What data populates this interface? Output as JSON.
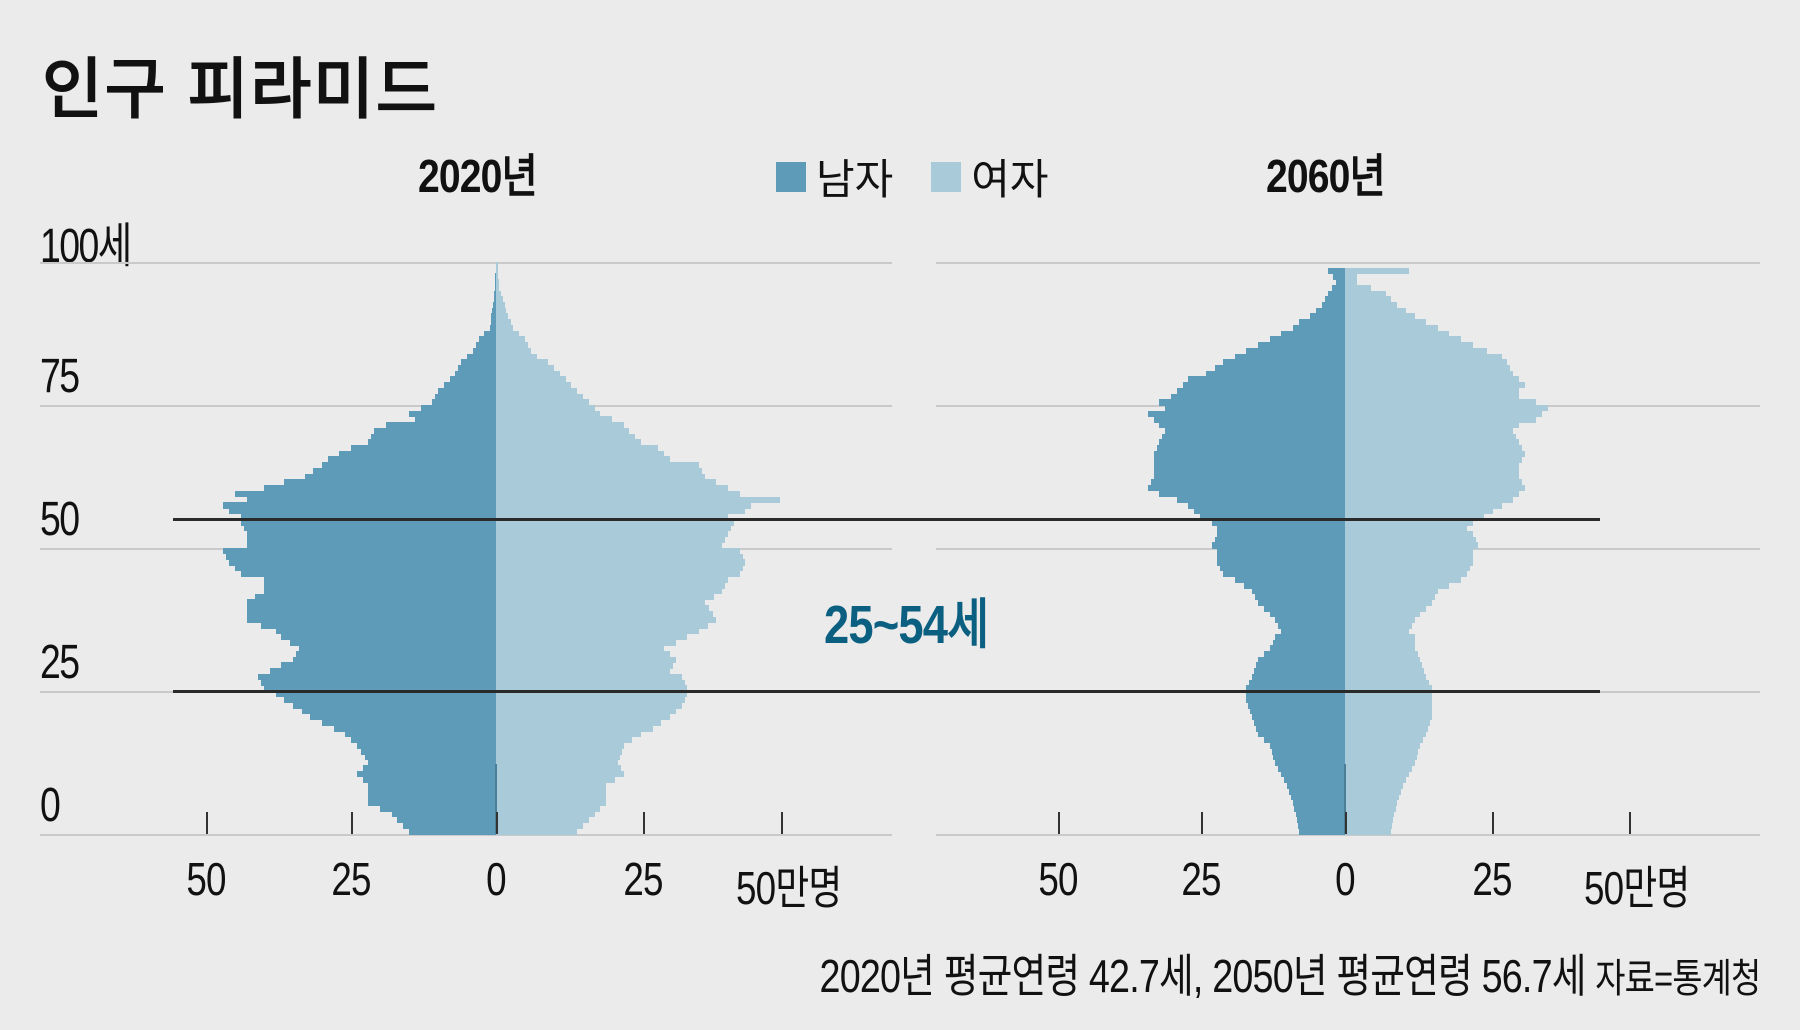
{
  "title": "인구 피라미드",
  "legend": {
    "male_label": "남자",
    "female_label": "여자",
    "male_color": "#5e9bb9",
    "female_color": "#a9cad9"
  },
  "panels": [
    {
      "title": "2020년"
    },
    {
      "title": "2060년"
    }
  ],
  "y_axis": {
    "ticks": [
      {
        "label": "100세",
        "value": 100
      },
      {
        "label": "75",
        "value": 75
      },
      {
        "label": "50",
        "value": 50
      },
      {
        "label": "25",
        "value": 25
      },
      {
        "label": "0",
        "value": 0
      }
    ]
  },
  "x_axis": {
    "ticks": [
      "50",
      "25",
      "0",
      "25",
      "50만명"
    ]
  },
  "highlight": {
    "label": "25~54세",
    "color": "#0b5f80",
    "from_age": 25,
    "to_age": 55
  },
  "footer": {
    "text": "2020년 평균연령 42.7세, 2050년 평균연령 56.7세",
    "source": "자료=통계청"
  },
  "chart_data": [
    {
      "type": "bar",
      "title": "2020년",
      "subtype": "population-pyramid",
      "xlabel": "만명",
      "ylabel": "세",
      "xlim": [
        -50,
        50
      ],
      "ylim": [
        0,
        100
      ],
      "series": [
        {
          "name": "남자",
          "color": "#5e9bb9",
          "points": [
            [
              0,
              15
            ],
            [
              3,
              18
            ],
            [
              5,
              22
            ],
            [
              8,
              22
            ],
            [
              10,
              24
            ],
            [
              12,
              22
            ],
            [
              15,
              24
            ],
            [
              17,
              26
            ],
            [
              18,
              28
            ],
            [
              20,
              32
            ],
            [
              22,
              35
            ],
            [
              24,
              38
            ],
            [
              25,
              40
            ],
            [
              27,
              41
            ],
            [
              28,
              39
            ],
            [
              30,
              35
            ],
            [
              32,
              34
            ],
            [
              34,
              37
            ],
            [
              35,
              38
            ],
            [
              37,
              43
            ],
            [
              40,
              43
            ],
            [
              42,
              40
            ],
            [
              44,
              40
            ],
            [
              45,
              44
            ],
            [
              47,
              46
            ],
            [
              49,
              47
            ],
            [
              50,
              43
            ],
            [
              52,
              43
            ],
            [
              54,
              44
            ],
            [
              55,
              44
            ],
            [
              56,
              46
            ],
            [
              57,
              47
            ],
            [
              58,
              43
            ],
            [
              59,
              45
            ],
            [
              60,
              40
            ],
            [
              62,
              33
            ],
            [
              64,
              30
            ],
            [
              65,
              29
            ],
            [
              67,
              25
            ],
            [
              68,
              22
            ],
            [
              70,
              21
            ],
            [
              71,
              19
            ],
            [
              72,
              14
            ],
            [
              73,
              15
            ],
            [
              74,
              13
            ],
            [
              75,
              11
            ],
            [
              77,
              10
            ],
            [
              79,
              8
            ],
            [
              80,
              7
            ],
            [
              82,
              6
            ],
            [
              83,
              5
            ],
            [
              84,
              4
            ],
            [
              86,
              3
            ],
            [
              87,
              2
            ],
            [
              88,
              1
            ],
            [
              90,
              0.8
            ],
            [
              92,
              0.5
            ],
            [
              95,
              0.2
            ],
            [
              99,
              0
            ]
          ]
        },
        {
          "name": "여자",
          "color": "#a9cad9",
          "points": [
            [
              0,
              14
            ],
            [
              3,
              17
            ],
            [
              5,
              19
            ],
            [
              8,
              19
            ],
            [
              10,
              22
            ],
            [
              12,
              21
            ],
            [
              15,
              22
            ],
            [
              17,
              25
            ],
            [
              18,
              27
            ],
            [
              20,
              30
            ],
            [
              22,
              32
            ],
            [
              24,
              33
            ],
            [
              25,
              33
            ],
            [
              27,
              32
            ],
            [
              28,
              30
            ],
            [
              30,
              31
            ],
            [
              32,
              29
            ],
            [
              34,
              33
            ],
            [
              35,
              35
            ],
            [
              37,
              38
            ],
            [
              40,
              36
            ],
            [
              42,
              39
            ],
            [
              44,
              40
            ],
            [
              45,
              42
            ],
            [
              47,
              43
            ],
            [
              49,
              42
            ],
            [
              50,
              39
            ],
            [
              52,
              40
            ],
            [
              54,
              41
            ],
            [
              55,
              40
            ],
            [
              56,
              43
            ],
            [
              57,
              44
            ],
            [
              58,
              49
            ],
            [
              59,
              42
            ],
            [
              60,
              40
            ],
            [
              62,
              36
            ],
            [
              64,
              35
            ],
            [
              65,
              30
            ],
            [
              67,
              28
            ],
            [
              68,
              25
            ],
            [
              70,
              23
            ],
            [
              71,
              22
            ],
            [
              72,
              20
            ],
            [
              73,
              18
            ],
            [
              74,
              17
            ],
            [
              75,
              16
            ],
            [
              77,
              14
            ],
            [
              79,
              12
            ],
            [
              80,
              11
            ],
            [
              82,
              9
            ],
            [
              83,
              7
            ],
            [
              84,
              6
            ],
            [
              86,
              5
            ],
            [
              87,
              4
            ],
            [
              88,
              3
            ],
            [
              90,
              2
            ],
            [
              92,
              1.5
            ],
            [
              95,
              0.5
            ],
            [
              99,
              0.3
            ]
          ]
        }
      ]
    },
    {
      "type": "bar",
      "title": "2060년",
      "subtype": "population-pyramid",
      "xlabel": "만명",
      "ylabel": "세",
      "xlim": [
        -50,
        50
      ],
      "ylim": [
        0,
        100
      ],
      "series": [
        {
          "name": "남자",
          "color": "#5e9bb9",
          "points": [
            [
              0,
              8
            ],
            [
              3,
              8.5
            ],
            [
              5,
              9
            ],
            [
              8,
              10
            ],
            [
              10,
              11
            ],
            [
              12,
              12
            ],
            [
              15,
              13
            ],
            [
              17,
              15
            ],
            [
              20,
              16
            ],
            [
              23,
              17
            ],
            [
              25,
              17
            ],
            [
              27,
              16
            ],
            [
              30,
              15
            ],
            [
              32,
              13
            ],
            [
              34,
              12
            ],
            [
              35,
              11
            ],
            [
              37,
              12
            ],
            [
              39,
              14
            ],
            [
              40,
              15
            ],
            [
              42,
              16
            ],
            [
              44,
              19
            ],
            [
              45,
              21
            ],
            [
              47,
              22
            ],
            [
              49,
              22
            ],
            [
              50,
              23
            ],
            [
              52,
              22
            ],
            [
              53,
              22
            ],
            [
              54,
              23
            ],
            [
              55,
              25
            ],
            [
              57,
              27
            ],
            [
              58,
              29
            ],
            [
              59,
              32
            ],
            [
              60,
              34
            ],
            [
              62,
              33
            ],
            [
              64,
              33
            ],
            [
              66,
              33
            ],
            [
              68,
              32
            ],
            [
              70,
              31
            ],
            [
              71,
              32
            ],
            [
              72,
              33
            ],
            [
              73,
              34
            ],
            [
              74,
              31
            ],
            [
              75,
              32
            ],
            [
              76,
              30
            ],
            [
              77,
              29
            ],
            [
              78,
              28
            ],
            [
              79,
              27
            ],
            [
              80,
              24
            ],
            [
              82,
              21
            ],
            [
              83,
              19
            ],
            [
              85,
              15
            ],
            [
              86,
              13
            ],
            [
              88,
              9
            ],
            [
              89,
              8
            ],
            [
              90,
              6
            ],
            [
              92,
              4
            ],
            [
              94,
              3
            ],
            [
              96,
              1.5
            ],
            [
              97,
              2
            ],
            [
              98,
              3
            ]
          ]
        },
        {
          "name": "여자",
          "color": "#a9cad9",
          "points": [
            [
              0,
              8
            ],
            [
              3,
              8.5
            ],
            [
              5,
              9
            ],
            [
              8,
              10
            ],
            [
              10,
              11
            ],
            [
              12,
              12
            ],
            [
              15,
              13
            ],
            [
              17,
              14
            ],
            [
              20,
              15
            ],
            [
              23,
              15
            ],
            [
              25,
              15
            ],
            [
              27,
              14
            ],
            [
              30,
              13
            ],
            [
              32,
              12
            ],
            [
              34,
              12
            ],
            [
              35,
              11
            ],
            [
              37,
              12
            ],
            [
              39,
              14
            ],
            [
              40,
              15
            ],
            [
              42,
              16
            ],
            [
              44,
              20
            ],
            [
              45,
              21
            ],
            [
              47,
              22
            ],
            [
              49,
              22
            ],
            [
              50,
              23
            ],
            [
              52,
              22
            ],
            [
              53,
              21
            ],
            [
              54,
              22
            ],
            [
              55,
              24
            ],
            [
              57,
              27
            ],
            [
              58,
              29
            ],
            [
              59,
              30
            ],
            [
              60,
              31
            ],
            [
              62,
              30
            ],
            [
              64,
              30
            ],
            [
              66,
              31
            ],
            [
              68,
              30
            ],
            [
              70,
              29
            ],
            [
              71,
              30
            ],
            [
              72,
              33
            ],
            [
              73,
              34
            ],
            [
              74,
              35
            ],
            [
              75,
              33
            ],
            [
              76,
              30
            ],
            [
              77,
              30
            ],
            [
              78,
              31
            ],
            [
              79,
              30
            ],
            [
              80,
              29
            ],
            [
              82,
              28
            ],
            [
              83,
              27
            ],
            [
              85,
              22
            ],
            [
              86,
              20
            ],
            [
              88,
              16
            ],
            [
              89,
              14
            ],
            [
              90,
              12
            ],
            [
              92,
              9
            ],
            [
              94,
              7
            ],
            [
              96,
              2
            ],
            [
              97,
              2
            ],
            [
              98,
              11
            ]
          ]
        }
      ]
    }
  ]
}
